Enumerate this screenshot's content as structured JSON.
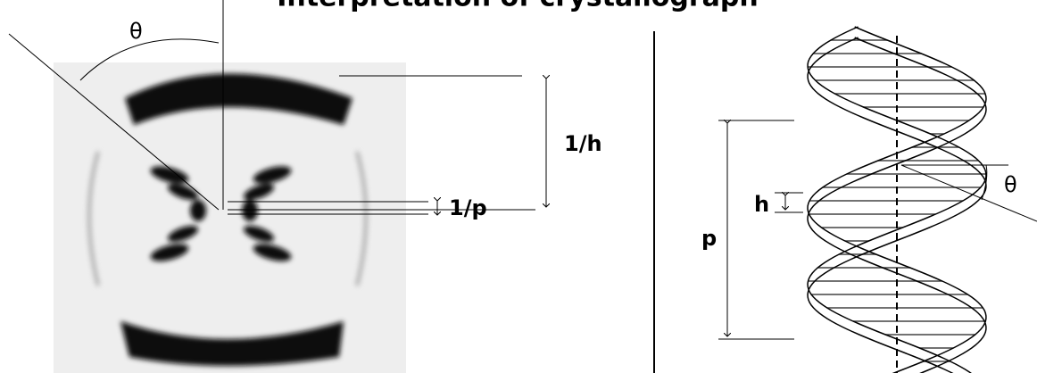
{
  "title": "Interpretation of crystallograph",
  "diffraction": {
    "angle_label": "θ",
    "layer_label": "1/h",
    "spot_label": "1/p"
  },
  "helix": {
    "pitch_label": "p",
    "rise_label": "h",
    "angle_label": "θ"
  }
}
